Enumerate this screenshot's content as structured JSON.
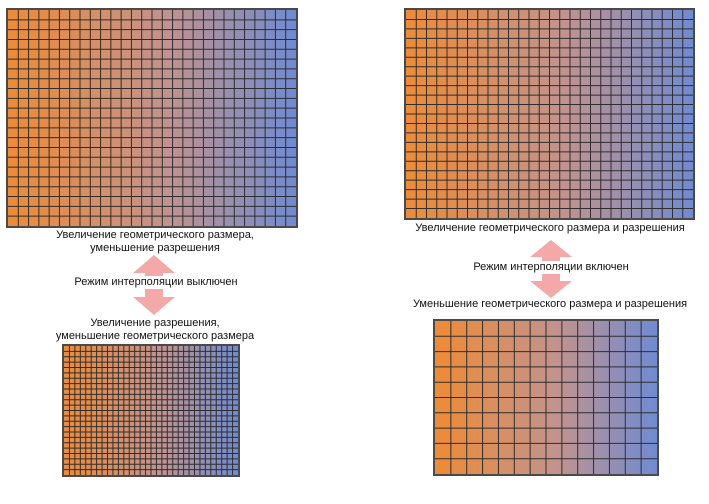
{
  "colors": {
    "gradient_start": "#ee8b35",
    "gradient_mid": "#c2938e",
    "gradient_end": "#6f8bd2",
    "grid_line": "#2e2e2e",
    "frame": "#4a4a4a",
    "arrow": "#f5a8a8"
  },
  "left": {
    "top_caption": {
      "line1": "Увеличение геометрического размера,",
      "line2": "уменьшение разрешения"
    },
    "mode_label": "Режим интерполяции выключен",
    "bottom_caption": {
      "line1": "Увеличение разрешения,",
      "line2": "уменьшение геометрического размера"
    }
  },
  "right": {
    "top_caption": "Увеличение геометрического размера и разрешения",
    "mode_label": "Режим интерполяции включен",
    "bottom_caption": "Уменьшение геометрического размера и разрешения"
  }
}
